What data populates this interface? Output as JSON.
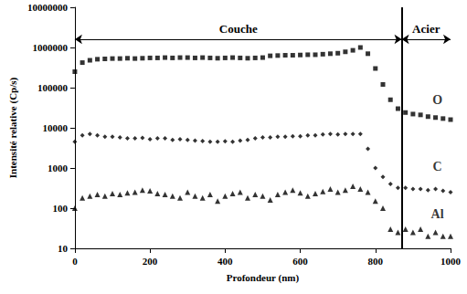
{
  "chart_data": {
    "type": "scatter",
    "log": "y",
    "grid": false,
    "xlabel": "Profondeur (nm)",
    "ylabel": "Intensité relative (Cp/s)",
    "xlim": [
      0,
      1000
    ],
    "xticks": [
      0,
      200,
      400,
      600,
      800,
      1000
    ],
    "ylim": [
      10,
      10000000
    ],
    "yticks": [
      10,
      100,
      1000,
      10000,
      100000,
      1000000,
      10000000
    ],
    "x": [
      0,
      20,
      40,
      60,
      80,
      100,
      120,
      140,
      160,
      180,
      200,
      220,
      240,
      260,
      280,
      300,
      320,
      340,
      360,
      380,
      400,
      420,
      440,
      460,
      480,
      500,
      520,
      540,
      560,
      580,
      600,
      620,
      640,
      660,
      680,
      700,
      720,
      740,
      760,
      780,
      800,
      820,
      840,
      860,
      880,
      900,
      920,
      940,
      960,
      980,
      1000
    ],
    "series": [
      {
        "name": "O",
        "color": "#000000",
        "marker": "square",
        "values": [
          250000,
          420000,
          480000,
          510000,
          520000,
          530000,
          530000,
          540000,
          530000,
          540000,
          550000,
          550000,
          560000,
          550000,
          560000,
          560000,
          550000,
          560000,
          550000,
          540000,
          550000,
          560000,
          550000,
          540000,
          550000,
          560000,
          620000,
          630000,
          640000,
          640000,
          650000,
          660000,
          660000,
          680000,
          700000,
          720000,
          780000,
          850000,
          1000000,
          700000,
          300000,
          120000,
          50000,
          30000,
          24000,
          22000,
          21000,
          19000,
          18000,
          17000,
          16000
        ]
      },
      {
        "name": "C",
        "color": "#000000",
        "marker": "diamond",
        "values": [
          4500,
          6500,
          7000,
          6500,
          6000,
          6000,
          5800,
          5500,
          5500,
          5600,
          5200,
          5500,
          5500,
          5000,
          5200,
          5000,
          4800,
          4700,
          4500,
          4500,
          4600,
          4500,
          4800,
          5000,
          5500,
          5800,
          5800,
          6000,
          6000,
          6200,
          6200,
          6500,
          6500,
          6800,
          7000,
          6800,
          7000,
          7000,
          7000,
          3000,
          1000,
          600,
          400,
          320,
          320,
          300,
          300,
          280,
          300,
          270,
          250
        ]
      },
      {
        "name": "Al",
        "color": "#000000",
        "marker": "triangle",
        "values": [
          100,
          180,
          200,
          220,
          200,
          230,
          220,
          240,
          250,
          280,
          270,
          230,
          220,
          200,
          180,
          250,
          200,
          180,
          220,
          150,
          200,
          230,
          250,
          180,
          220,
          200,
          160,
          220,
          250,
          280,
          240,
          200,
          230,
          260,
          300,
          250,
          280,
          350,
          300,
          250,
          150,
          100,
          30,
          25,
          30,
          25,
          30,
          20,
          25,
          20,
          20
        ]
      }
    ],
    "annotations": [
      {
        "text": "Couche",
        "x": [
          0,
          870
        ],
        "y": 1600000
      },
      {
        "text": "Acier",
        "x": [
          870,
          1000
        ],
        "y": 1600000
      },
      {
        "text": "O",
        "x": 965,
        "y": 50000
      },
      {
        "text": "C",
        "x": 965,
        "y": 1100
      },
      {
        "text": "Al",
        "x": 965,
        "y": 70
      }
    ],
    "boundary_x": 870
  }
}
